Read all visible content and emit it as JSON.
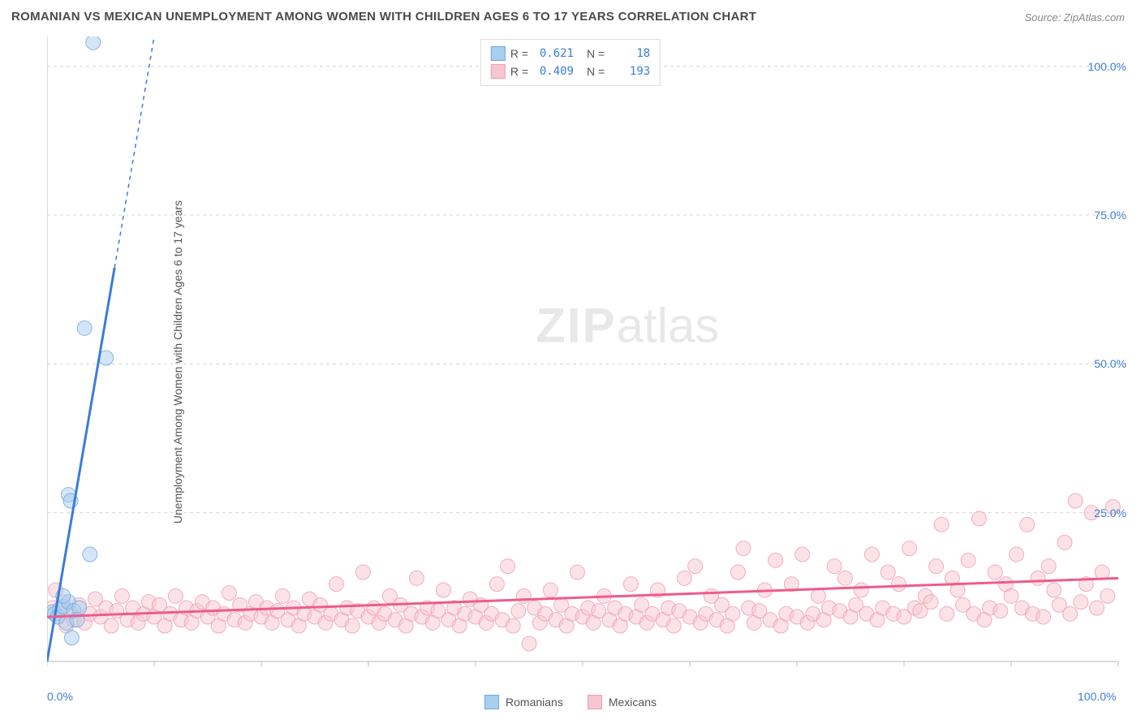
{
  "title": "ROMANIAN VS MEXICAN UNEMPLOYMENT AMONG WOMEN WITH CHILDREN AGES 6 TO 17 YEARS CORRELATION CHART",
  "source": "Source: ZipAtlas.com",
  "y_axis_label": "Unemployment Among Women with Children Ages 6 to 17 years",
  "watermark_zip": "ZIP",
  "watermark_atlas": "atlas",
  "chart": {
    "type": "scatter",
    "xlim": [
      0,
      100
    ],
    "ylim": [
      0,
      105
    ],
    "x_ticks": [
      0,
      10,
      20,
      30,
      40,
      50,
      60,
      70,
      80,
      90,
      100
    ],
    "x_tick_labels": {
      "0": "0.0%",
      "100": "100.0%"
    },
    "y_grid": [
      25,
      50,
      75,
      100
    ],
    "y_tick_labels": {
      "25": "25.0%",
      "50": "50.0%",
      "75": "75.0%",
      "100": "100.0%"
    },
    "background_color": "#ffffff",
    "grid_color": "#d8d8d8",
    "axis_color": "#bbbbbb",
    "marker_radius": 9,
    "marker_opacity": 0.5,
    "trend_line_width": 3
  },
  "series": [
    {
      "name": "Romanians",
      "color_fill": "#a8cef0",
      "color_stroke": "#6fa8dc",
      "trend_color": "#3b7dd8",
      "R": "0.621",
      "N": "18",
      "trend": {
        "x1": 0,
        "y1": 0,
        "x2": 10,
        "y2": 105,
        "dashed_from_x": 6.3
      },
      "points": [
        [
          0.5,
          8.3
        ],
        [
          0.7,
          8.0
        ],
        [
          1.0,
          7.5
        ],
        [
          1.2,
          8.8
        ],
        [
          1.5,
          9.2
        ],
        [
          1.8,
          6.5
        ],
        [
          2.0,
          10.0
        ],
        [
          2.3,
          4.0
        ],
        [
          2.5,
          8.5
        ],
        [
          3.0,
          9.0
        ],
        [
          2.0,
          28.0
        ],
        [
          2.2,
          27.0
        ],
        [
          4.0,
          18.0
        ],
        [
          3.5,
          56.0
        ],
        [
          5.5,
          51.0
        ],
        [
          4.3,
          104.0
        ],
        [
          1.5,
          11.0
        ],
        [
          2.8,
          7.0
        ]
      ]
    },
    {
      "name": "Mexicans",
      "color_fill": "#f7c6d0",
      "color_stroke": "#ef9eb0",
      "trend_color": "#ef5b8a",
      "R": "0.409",
      "N": "193",
      "trend": {
        "x1": 0,
        "y1": 7.5,
        "x2": 100,
        "y2": 14.0
      },
      "points": [
        [
          0.5,
          9.0
        ],
        [
          0.8,
          12.0
        ],
        [
          1.0,
          7.5
        ],
        [
          1.5,
          10.0
        ],
        [
          1.8,
          6.0
        ],
        [
          2.0,
          8.5
        ],
        [
          2.5,
          7.0
        ],
        [
          3.0,
          9.5
        ],
        [
          3.5,
          6.5
        ],
        [
          4.0,
          8.0
        ],
        [
          4.5,
          10.5
        ],
        [
          5.0,
          7.5
        ],
        [
          5.5,
          9.0
        ],
        [
          6.0,
          6.0
        ],
        [
          6.5,
          8.5
        ],
        [
          7.0,
          11.0
        ],
        [
          7.5,
          7.0
        ],
        [
          8.0,
          9.0
        ],
        [
          8.5,
          6.5
        ],
        [
          9.0,
          8.0
        ],
        [
          9.5,
          10.0
        ],
        [
          10.0,
          7.5
        ],
        [
          10.5,
          9.5
        ],
        [
          11.0,
          6.0
        ],
        [
          11.5,
          8.0
        ],
        [
          12.0,
          11.0
        ],
        [
          12.5,
          7.0
        ],
        [
          13.0,
          9.0
        ],
        [
          13.5,
          6.5
        ],
        [
          14.0,
          8.5
        ],
        [
          14.5,
          10.0
        ],
        [
          15.0,
          7.5
        ],
        [
          15.5,
          9.0
        ],
        [
          16.0,
          6.0
        ],
        [
          16.5,
          8.0
        ],
        [
          17.0,
          11.5
        ],
        [
          17.5,
          7.0
        ],
        [
          18.0,
          9.5
        ],
        [
          18.5,
          6.5
        ],
        [
          19.0,
          8.0
        ],
        [
          19.5,
          10.0
        ],
        [
          20.0,
          7.5
        ],
        [
          20.5,
          9.0
        ],
        [
          21.0,
          6.5
        ],
        [
          21.5,
          8.5
        ],
        [
          22.0,
          11.0
        ],
        [
          22.5,
          7.0
        ],
        [
          23.0,
          9.0
        ],
        [
          23.5,
          6.0
        ],
        [
          24.0,
          8.0
        ],
        [
          24.5,
          10.5
        ],
        [
          25.0,
          7.5
        ],
        [
          25.5,
          9.5
        ],
        [
          26.0,
          6.5
        ],
        [
          26.5,
          8.0
        ],
        [
          27.0,
          13.0
        ],
        [
          27.5,
          7.0
        ],
        [
          28.0,
          9.0
        ],
        [
          28.5,
          6.0
        ],
        [
          29.0,
          8.5
        ],
        [
          29.5,
          15.0
        ],
        [
          30.0,
          7.5
        ],
        [
          30.5,
          9.0
        ],
        [
          31.0,
          6.5
        ],
        [
          31.5,
          8.0
        ],
        [
          32.0,
          11.0
        ],
        [
          32.5,
          7.0
        ],
        [
          33.0,
          9.5
        ],
        [
          33.5,
          6.0
        ],
        [
          34.0,
          8.0
        ],
        [
          34.5,
          14.0
        ],
        [
          35.0,
          7.5
        ],
        [
          35.5,
          9.0
        ],
        [
          36.0,
          6.5
        ],
        [
          36.5,
          8.5
        ],
        [
          37.0,
          12.0
        ],
        [
          37.5,
          7.0
        ],
        [
          38.0,
          9.0
        ],
        [
          38.5,
          6.0
        ],
        [
          39.0,
          8.0
        ],
        [
          39.5,
          10.5
        ],
        [
          40.0,
          7.5
        ],
        [
          40.5,
          9.5
        ],
        [
          41.0,
          6.5
        ],
        [
          41.5,
          8.0
        ],
        [
          42.0,
          13.0
        ],
        [
          42.5,
          7.0
        ],
        [
          43.0,
          16.0
        ],
        [
          43.5,
          6.0
        ],
        [
          44.0,
          8.5
        ],
        [
          44.5,
          11.0
        ],
        [
          45.0,
          3.0
        ],
        [
          45.5,
          9.0
        ],
        [
          46.0,
          6.5
        ],
        [
          46.5,
          8.0
        ],
        [
          47.0,
          12.0
        ],
        [
          47.5,
          7.0
        ],
        [
          48.0,
          9.5
        ],
        [
          48.5,
          6.0
        ],
        [
          49.0,
          8.0
        ],
        [
          49.5,
          15.0
        ],
        [
          50.0,
          7.5
        ],
        [
          50.5,
          9.0
        ],
        [
          51.0,
          6.5
        ],
        [
          51.5,
          8.5
        ],
        [
          52.0,
          11.0
        ],
        [
          52.5,
          7.0
        ],
        [
          53.0,
          9.0
        ],
        [
          53.5,
          6.0
        ],
        [
          54.0,
          8.0
        ],
        [
          54.5,
          13.0
        ],
        [
          55.0,
          7.5
        ],
        [
          55.5,
          9.5
        ],
        [
          56.0,
          6.5
        ],
        [
          56.5,
          8.0
        ],
        [
          57.0,
          12.0
        ],
        [
          57.5,
          7.0
        ],
        [
          58.0,
          9.0
        ],
        [
          58.5,
          6.0
        ],
        [
          59.0,
          8.5
        ],
        [
          59.5,
          14.0
        ],
        [
          60.0,
          7.5
        ],
        [
          60.5,
          16.0
        ],
        [
          61.0,
          6.5
        ],
        [
          61.5,
          8.0
        ],
        [
          62.0,
          11.0
        ],
        [
          62.5,
          7.0
        ],
        [
          63.0,
          9.5
        ],
        [
          63.5,
          6.0
        ],
        [
          64.0,
          8.0
        ],
        [
          64.5,
          15.0
        ],
        [
          65.0,
          19.0
        ],
        [
          65.5,
          9.0
        ],
        [
          66.0,
          6.5
        ],
        [
          66.5,
          8.5
        ],
        [
          67.0,
          12.0
        ],
        [
          67.5,
          7.0
        ],
        [
          68.0,
          17.0
        ],
        [
          68.5,
          6.0
        ],
        [
          69.0,
          8.0
        ],
        [
          69.5,
          13.0
        ],
        [
          70.0,
          7.5
        ],
        [
          70.5,
          18.0
        ],
        [
          71.0,
          6.5
        ],
        [
          71.5,
          8.0
        ],
        [
          72.0,
          11.0
        ],
        [
          72.5,
          7.0
        ],
        [
          73.0,
          9.0
        ],
        [
          73.5,
          16.0
        ],
        [
          74.0,
          8.5
        ],
        [
          74.5,
          14.0
        ],
        [
          75.0,
          7.5
        ],
        [
          75.5,
          9.5
        ],
        [
          76.0,
          12.0
        ],
        [
          76.5,
          8.0
        ],
        [
          77.0,
          18.0
        ],
        [
          77.5,
          7.0
        ],
        [
          78.0,
          9.0
        ],
        [
          78.5,
          15.0
        ],
        [
          79.0,
          8.0
        ],
        [
          79.5,
          13.0
        ],
        [
          80.0,
          7.5
        ],
        [
          80.5,
          19.0
        ],
        [
          81.0,
          9.0
        ],
        [
          81.5,
          8.5
        ],
        [
          82.0,
          11.0
        ],
        [
          82.5,
          10.0
        ],
        [
          83.0,
          16.0
        ],
        [
          83.5,
          23.0
        ],
        [
          84.0,
          8.0
        ],
        [
          84.5,
          14.0
        ],
        [
          85.0,
          12.0
        ],
        [
          85.5,
          9.5
        ],
        [
          86.0,
          17.0
        ],
        [
          86.5,
          8.0
        ],
        [
          87.0,
          24.0
        ],
        [
          87.5,
          7.0
        ],
        [
          88.0,
          9.0
        ],
        [
          88.5,
          15.0
        ],
        [
          89.0,
          8.5
        ],
        [
          89.5,
          13.0
        ],
        [
          90.0,
          11.0
        ],
        [
          90.5,
          18.0
        ],
        [
          91.0,
          9.0
        ],
        [
          91.5,
          23.0
        ],
        [
          92.0,
          8.0
        ],
        [
          92.5,
          14.0
        ],
        [
          93.0,
          7.5
        ],
        [
          93.5,
          16.0
        ],
        [
          94.0,
          12.0
        ],
        [
          94.5,
          9.5
        ],
        [
          95.0,
          20.0
        ],
        [
          95.5,
          8.0
        ],
        [
          96.0,
          27.0
        ],
        [
          96.5,
          10.0
        ],
        [
          97.0,
          13.0
        ],
        [
          97.5,
          25.0
        ],
        [
          98.0,
          9.0
        ],
        [
          98.5,
          15.0
        ],
        [
          99.0,
          11.0
        ],
        [
          99.5,
          26.0
        ]
      ]
    }
  ],
  "legend_top": {
    "R_label": "R =",
    "N_label": "N ="
  },
  "legend_bottom": [
    {
      "label": "Romanians",
      "fill": "#a8cef0",
      "stroke": "#6fa8dc"
    },
    {
      "label": "Mexicans",
      "fill": "#f7c6d0",
      "stroke": "#ef9eb0"
    }
  ]
}
